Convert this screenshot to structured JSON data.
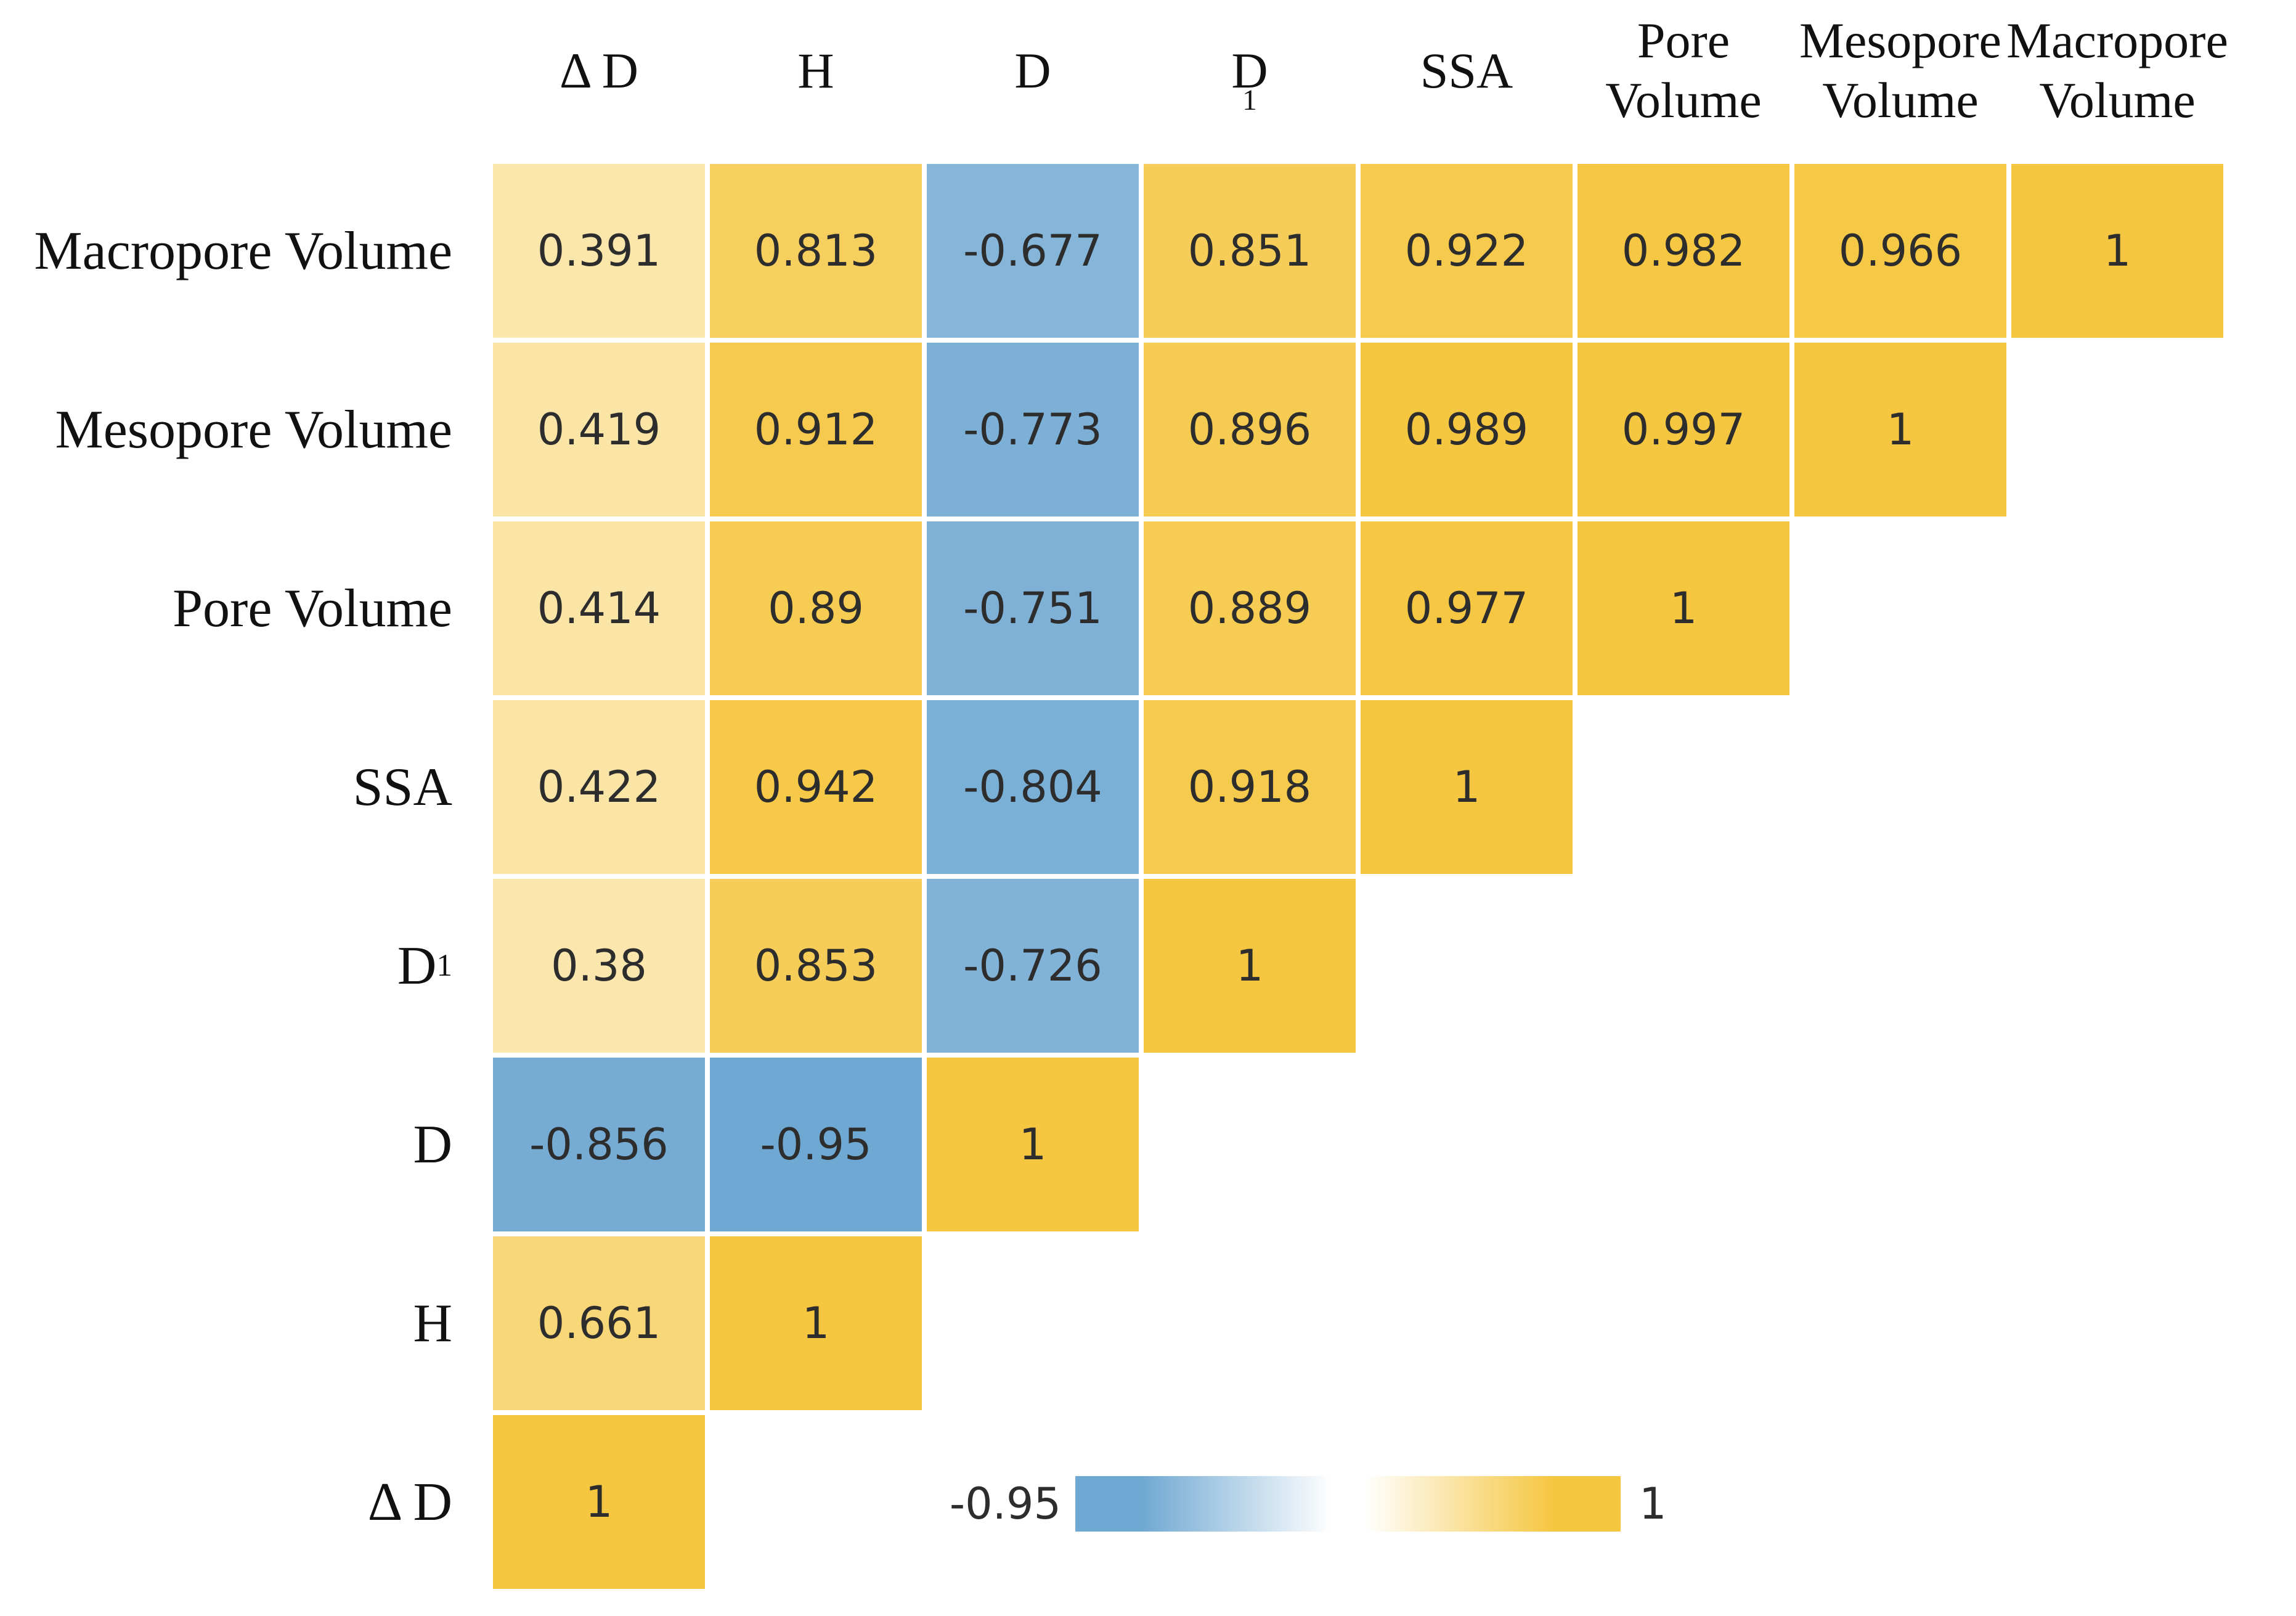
{
  "figure": {
    "background": "#ffffff",
    "text_color": "#111111",
    "number_color": "#2d2d2d"
  },
  "chart_data": {
    "type": "heatmap",
    "title": "",
    "description": "Lower-triangular correlation matrix heatmap",
    "columns": [
      "Δ D",
      "H",
      "D",
      "D_1",
      "SSA",
      "Pore Volume",
      "Mesopore Volume",
      "Macropore Volume"
    ],
    "rows": [
      "Macropore Volume",
      "Mesopore Volume",
      "Pore Volume",
      "SSA",
      "D_1",
      "D",
      "H",
      "Δ D"
    ],
    "matrix": [
      [
        0.391,
        0.813,
        -0.677,
        0.851,
        0.922,
        0.982,
        0.966,
        1
      ],
      [
        0.419,
        0.912,
        -0.773,
        0.896,
        0.989,
        0.997,
        1,
        null
      ],
      [
        0.414,
        0.89,
        -0.751,
        0.889,
        0.977,
        1,
        null,
        null
      ],
      [
        0.422,
        0.942,
        -0.804,
        0.918,
        1,
        null,
        null,
        null
      ],
      [
        0.38,
        0.853,
        -0.726,
        1,
        null,
        null,
        null,
        null
      ],
      [
        -0.856,
        -0.95,
        1,
        null,
        null,
        null,
        null,
        null
      ],
      [
        0.661,
        1,
        null,
        null,
        null,
        null,
        null,
        null
      ],
      [
        1,
        null,
        null,
        null,
        null,
        null,
        null,
        null
      ]
    ],
    "colorbar": {
      "orientation": "horizontal",
      "min": -0.95,
      "max": 1,
      "midpoint": 0.025,
      "min_label": "-0.95",
      "max_label": "1",
      "blue": "#6FA8D2",
      "gold": "#F5C63F",
      "legend_position": "bottom-center"
    },
    "grid": false
  }
}
